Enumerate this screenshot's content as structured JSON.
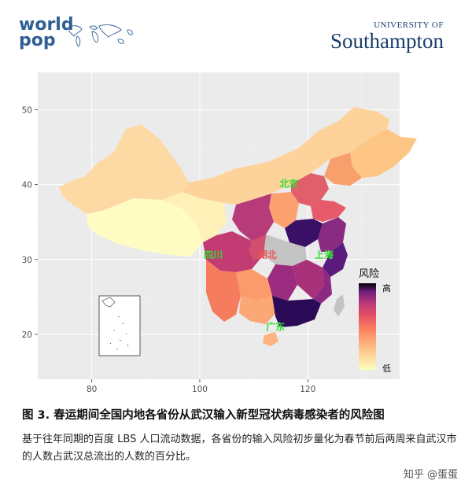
{
  "header": {
    "worldpop_line1": "world",
    "worldpop_line2": "pop",
    "uos_top": "UNIVERSITY OF",
    "uos_main": "Southampton"
  },
  "chart_data": {
    "type": "choropleth-map",
    "title": "",
    "xlabel": "",
    "ylabel": "",
    "x_ticks": [
      80,
      100,
      120
    ],
    "y_ticks": [
      20,
      30,
      40,
      50
    ],
    "xlim": [
      70,
      137
    ],
    "ylim": [
      14,
      55
    ],
    "grid": true,
    "legend": {
      "title": "风险",
      "high_label": "高",
      "low_label": "低",
      "placement": "right"
    },
    "annotations": [
      {
        "label": "北京",
        "lon": 116.5,
        "lat": 40.1,
        "color": "#33dd33"
      },
      {
        "label": "四川",
        "lon": 102.5,
        "lat": 30.6,
        "color": "#33dd33"
      },
      {
        "label": "湖北",
        "lon": 112.5,
        "lat": 30.6,
        "color": "#ee5555"
      },
      {
        "label": "上海",
        "lon": 123.0,
        "lat": 30.6,
        "color": "#33dd33"
      },
      {
        "label": "广东",
        "lon": 114.0,
        "lat": 21.0,
        "color": "#33dd33"
      }
    ]
  },
  "caption": {
    "title": "图 3. 春运期间全国内地各省份从武汉输入新型冠状病毒感染者的风险图",
    "body": "基于往年同期的百度 LBS 人口流动数据，各省份的输入风险初步量化为春节前后两周来自武汉市的人数占武汉总流出的人数的百分比。"
  },
  "watermark": "知乎 @蛋蛋"
}
